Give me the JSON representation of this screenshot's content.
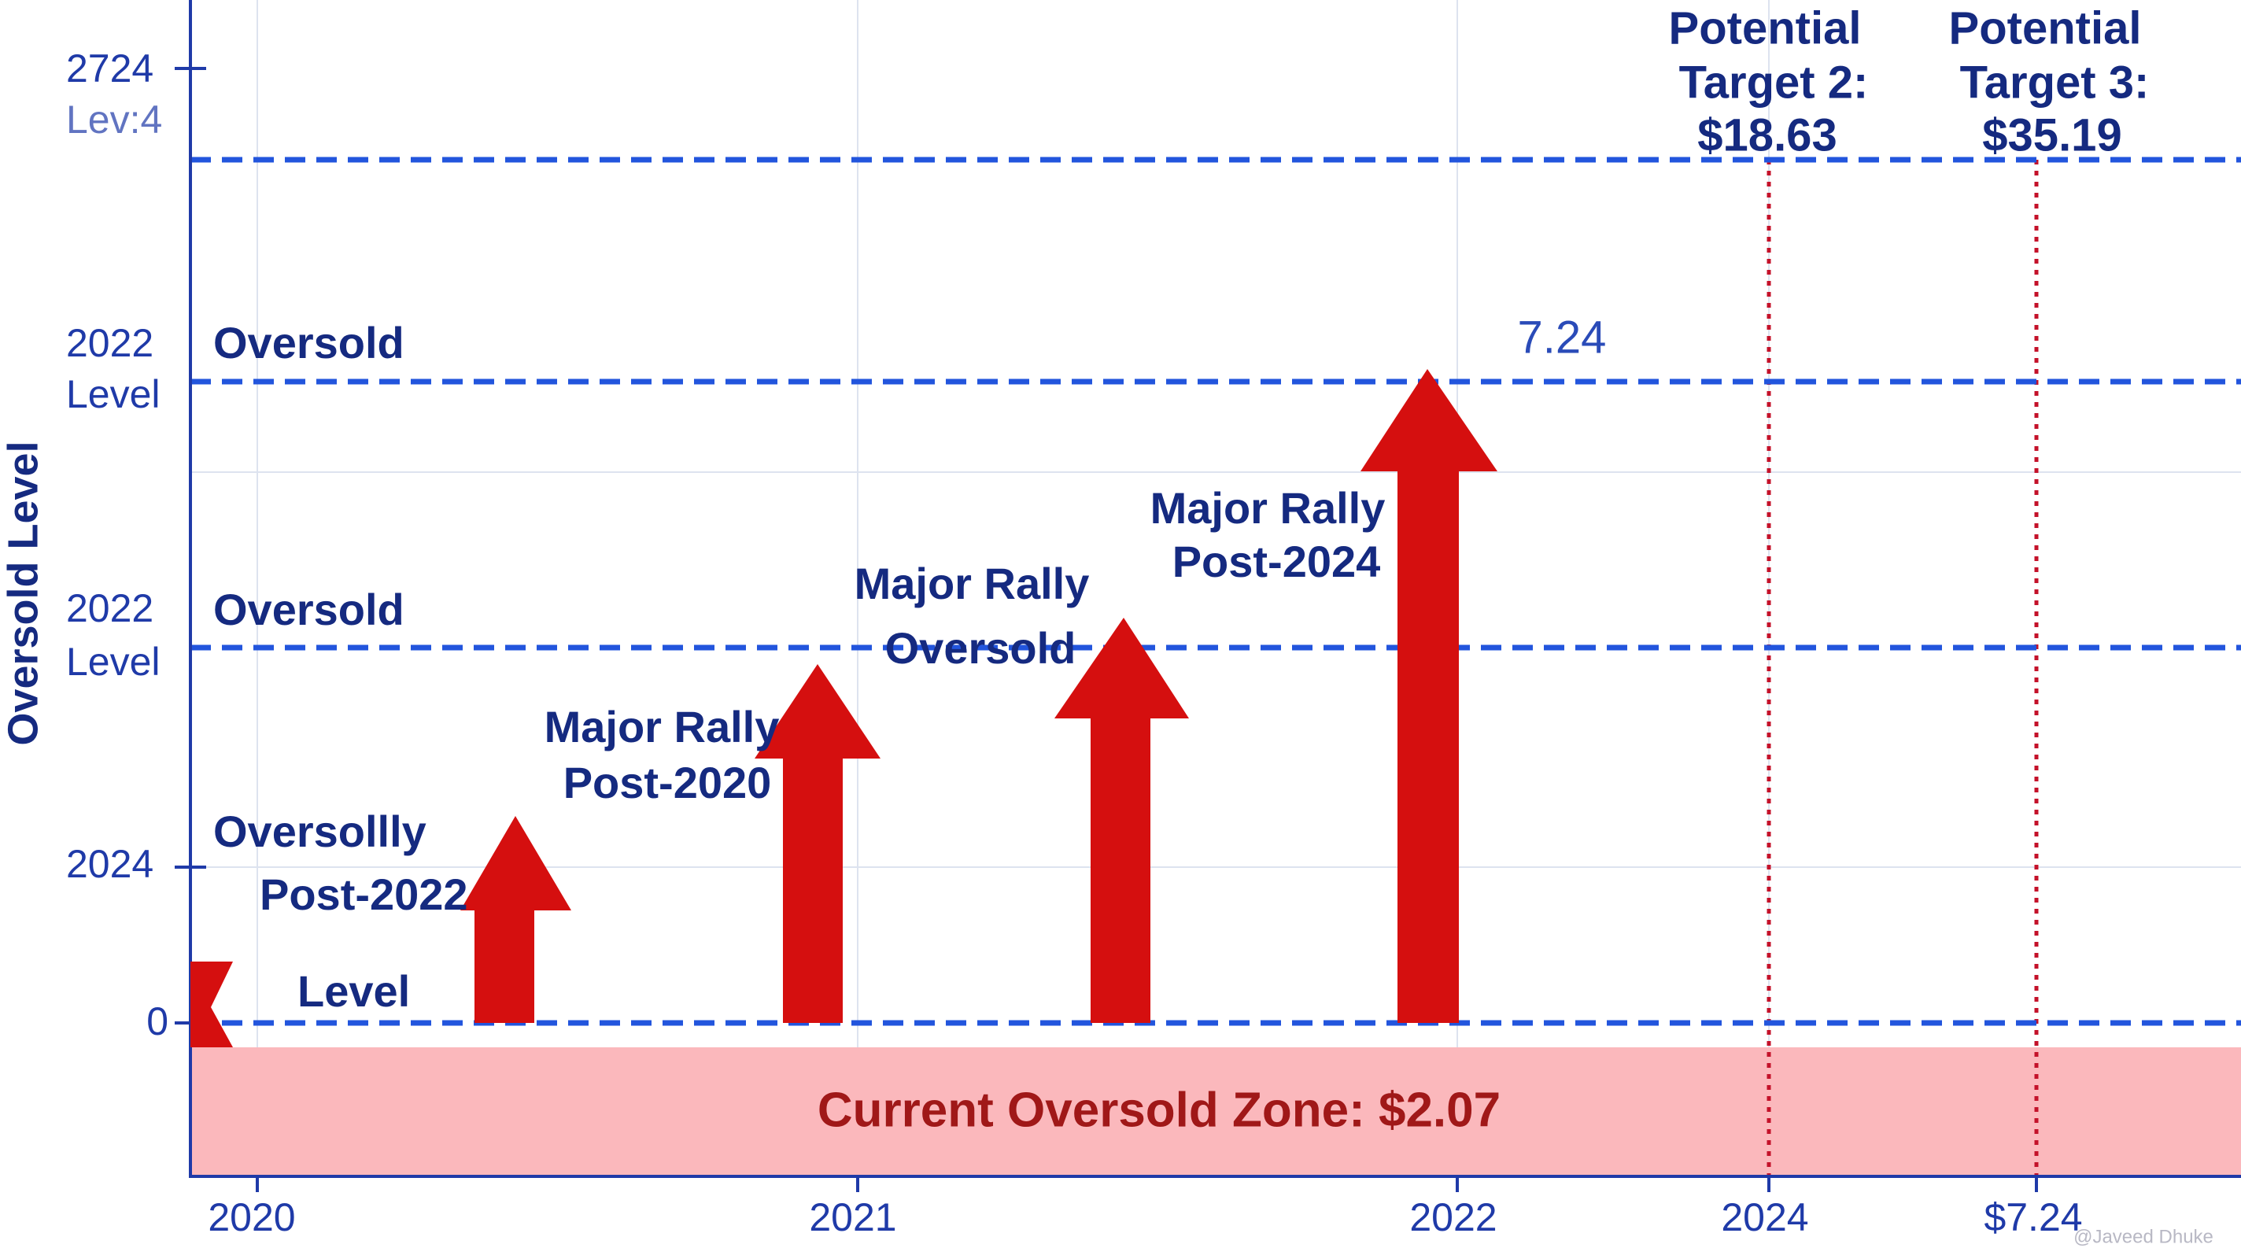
{
  "y_axis": {
    "title": "Oversold Level",
    "tick_labels": [
      "2724",
      "Lev:4",
      "2022",
      "Level",
      "2022",
      "Level",
      "2024",
      "0"
    ]
  },
  "x_axis": {
    "tick_labels": [
      "2020",
      "2021",
      "2022",
      "2024",
      "$7.24"
    ]
  },
  "annotations": {
    "oversold_1": "Oversold",
    "oversold_2": "Oversold",
    "oversollly": "Oversollly",
    "post_2022": "Post-2022",
    "level": "Level",
    "rally_1": [
      "Major Rally",
      "Post-2020"
    ],
    "rally_2": [
      "Major Rally",
      "Oversold"
    ],
    "rally_3": [
      "Major Rally",
      "Post-2024"
    ],
    "peak": "7.24"
  },
  "targets": [
    [
      "Potential",
      "Target 2:",
      "$18.63"
    ],
    [
      "Potential",
      "Target 3:",
      "$35.19"
    ]
  ],
  "zone_label": "Current Oversold Zone: $2.07",
  "watermark": "@Javeed Dhuke"
}
